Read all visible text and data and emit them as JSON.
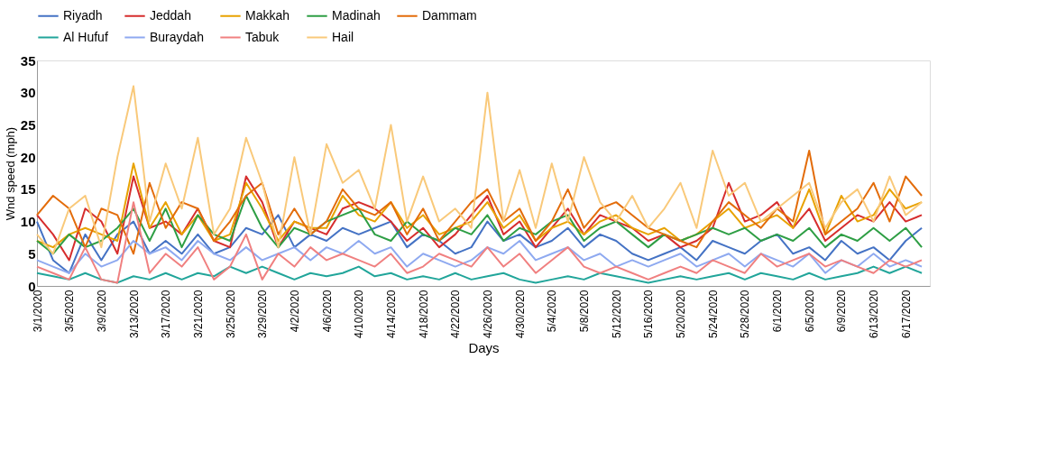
{
  "chart_data": {
    "type": "line",
    "xlabel": "Days",
    "ylabel": "Wnd speed (mph)",
    "ylim": [
      0,
      35
    ],
    "yticks": [
      0,
      5,
      10,
      15,
      20,
      25,
      30,
      35
    ],
    "xlim": [
      "2020-03-01",
      "2020-06-20"
    ],
    "xticks": [
      {
        "value": "2020-03-01",
        "label": "3/1/2020"
      },
      {
        "value": "2020-03-05",
        "label": "3/5/2020"
      },
      {
        "value": "2020-03-09",
        "label": "3/9/2020"
      },
      {
        "value": "2020-03-13",
        "label": "3/13/2020"
      },
      {
        "value": "2020-03-17",
        "label": "3/17/2020"
      },
      {
        "value": "2020-03-21",
        "label": "3/21/2020"
      },
      {
        "value": "2020-03-25",
        "label": "3/25/2020"
      },
      {
        "value": "2020-03-29",
        "label": "3/29/2020"
      },
      {
        "value": "2020-04-02",
        "label": "4/2/2020"
      },
      {
        "value": "2020-04-06",
        "label": "4/6/2020"
      },
      {
        "value": "2020-04-10",
        "label": "4/10/2020"
      },
      {
        "value": "2020-04-14",
        "label": "4/14/2020"
      },
      {
        "value": "2020-04-18",
        "label": "4/18/2020"
      },
      {
        "value": "2020-04-22",
        "label": "4/22/2020"
      },
      {
        "value": "2020-04-26",
        "label": "4/26/2020"
      },
      {
        "value": "2020-04-30",
        "label": "4/30/2020"
      },
      {
        "value": "2020-05-04",
        "label": "5/4/2020"
      },
      {
        "value": "2020-05-08",
        "label": "5/8/2020"
      },
      {
        "value": "2020-05-12",
        "label": "5/12/2020"
      },
      {
        "value": "2020-05-16",
        "label": "5/16/2020"
      },
      {
        "value": "2020-05-20",
        "label": "5/20/2020"
      },
      {
        "value": "2020-05-24",
        "label": "5/24/2020"
      },
      {
        "value": "2020-05-28",
        "label": "5/28/2020"
      },
      {
        "value": "2020-06-01",
        "label": "6/1/2020"
      },
      {
        "value": "2020-06-05",
        "label": "6/5/2020"
      },
      {
        "value": "2020-06-09",
        "label": "6/9/2020"
      },
      {
        "value": "2020-06-13",
        "label": "6/13/2020"
      },
      {
        "value": "2020-06-17",
        "label": "6/17/2020"
      }
    ],
    "x": [
      "2020-03-01",
      "2020-03-03",
      "2020-03-05",
      "2020-03-07",
      "2020-03-09",
      "2020-03-11",
      "2020-03-13",
      "2020-03-15",
      "2020-03-17",
      "2020-03-19",
      "2020-03-21",
      "2020-03-23",
      "2020-03-25",
      "2020-03-27",
      "2020-03-29",
      "2020-03-31",
      "2020-04-02",
      "2020-04-04",
      "2020-04-06",
      "2020-04-08",
      "2020-04-10",
      "2020-04-12",
      "2020-04-14",
      "2020-04-16",
      "2020-04-18",
      "2020-04-20",
      "2020-04-22",
      "2020-04-24",
      "2020-04-26",
      "2020-04-28",
      "2020-04-30",
      "2020-05-02",
      "2020-05-04",
      "2020-05-06",
      "2020-05-08",
      "2020-05-10",
      "2020-05-12",
      "2020-05-14",
      "2020-05-16",
      "2020-05-18",
      "2020-05-20",
      "2020-05-22",
      "2020-05-24",
      "2020-05-26",
      "2020-05-28",
      "2020-05-30",
      "2020-06-01",
      "2020-06-03",
      "2020-06-05",
      "2020-06-07",
      "2020-06-09",
      "2020-06-11",
      "2020-06-13",
      "2020-06-15",
      "2020-06-17",
      "2020-06-19"
    ],
    "grid": false,
    "legend": "top",
    "marker": "none",
    "line_style": "solid",
    "series": [
      {
        "name": "Riyadh",
        "color": "#4472c4",
        "values": [
          10,
          4,
          2,
          8,
          4,
          8,
          10,
          5,
          7,
          5,
          8,
          5,
          6,
          9,
          8,
          11,
          6,
          8,
          7,
          9,
          8,
          9,
          10,
          6,
          8,
          7,
          5,
          6,
          10,
          7,
          8,
          6,
          7,
          9,
          6,
          8,
          7,
          5,
          4,
          5,
          6,
          4,
          7,
          6,
          5,
          7,
          8,
          5,
          6,
          4,
          7,
          5,
          6,
          4,
          7,
          9
        ]
      },
      {
        "name": "Jeddah",
        "color": "#d62d2d",
        "values": [
          11,
          8,
          4,
          12,
          10,
          5,
          17,
          9,
          10,
          8,
          12,
          7,
          6,
          17,
          13,
          6,
          10,
          9,
          8,
          12,
          13,
          12,
          10,
          7,
          9,
          6,
          8,
          11,
          14,
          8,
          10,
          6,
          9,
          12,
          8,
          11,
          10,
          9,
          7,
          8,
          6,
          7,
          9,
          16,
          10,
          11,
          13,
          9,
          12,
          7,
          9,
          11,
          10,
          13,
          10,
          11
        ]
      },
      {
        "name": "Makkah",
        "color": "#e8a200",
        "values": [
          7,
          6,
          8,
          9,
          8,
          7,
          19,
          9,
          13,
          8,
          11,
          7,
          8,
          16,
          12,
          7,
          10,
          9,
          9,
          14,
          11,
          10,
          13,
          9,
          11,
          8,
          9,
          10,
          13,
          9,
          11,
          7,
          9,
          10,
          8,
          10,
          11,
          9,
          8,
          9,
          7,
          8,
          10,
          12,
          9,
          10,
          11,
          9,
          15,
          8,
          14,
          10,
          11,
          15,
          12,
          13
        ]
      },
      {
        "name": "Madinah",
        "color": "#2e9e44",
        "values": [
          7,
          5,
          8,
          6,
          7,
          9,
          12,
          7,
          12,
          6,
          11,
          8,
          7,
          14,
          9,
          6,
          9,
          8,
          10,
          11,
          12,
          8,
          7,
          10,
          8,
          7,
          9,
          8,
          11,
          7,
          9,
          8,
          10,
          11,
          7,
          9,
          10,
          8,
          6,
          8,
          7,
          8,
          9,
          8,
          9,
          7,
          8,
          7,
          9,
          6,
          8,
          7,
          9,
          7,
          9,
          6
        ]
      },
      {
        "name": "Dammam",
        "color": "#e36c0a",
        "values": [
          11,
          14,
          12,
          6,
          12,
          11,
          5,
          16,
          9,
          13,
          12,
          7,
          10,
          14,
          16,
          8,
          12,
          8,
          10,
          15,
          12,
          11,
          13,
          8,
          12,
          7,
          10,
          13,
          15,
          10,
          12,
          7,
          10,
          15,
          9,
          12,
          13,
          11,
          9,
          8,
          7,
          6,
          10,
          13,
          11,
          9,
          12,
          10,
          21,
          8,
          10,
          12,
          16,
          10,
          17,
          14
        ]
      },
      {
        "name": "Al Hufuf",
        "color": "#21a59a",
        "values": [
          2,
          1.5,
          1,
          2,
          1,
          0.5,
          1.5,
          1,
          2,
          1,
          2,
          1.5,
          3,
          2,
          3,
          2,
          1,
          2,
          1.5,
          2,
          3,
          1.5,
          2,
          1,
          1.5,
          1,
          2,
          1,
          1.5,
          2,
          1,
          0.5,
          1,
          1.5,
          1,
          2,
          1.5,
          1,
          0.5,
          1,
          1.5,
          1,
          1.5,
          2,
          1,
          2,
          1.5,
          1,
          2,
          1,
          1.5,
          2,
          3,
          2,
          3,
          2
        ]
      },
      {
        "name": "Buraydah",
        "color": "#8ea9f0",
        "values": [
          4,
          3,
          2,
          5,
          3,
          4,
          7,
          5,
          6,
          4,
          7,
          5,
          4,
          6,
          4,
          5,
          6,
          4,
          6,
          5,
          7,
          5,
          6,
          3,
          5,
          4,
          3,
          4,
          6,
          5,
          7,
          4,
          5,
          6,
          4,
          5,
          3,
          4,
          3,
          4,
          5,
          3,
          4,
          5,
          3,
          5,
          4,
          3,
          5,
          2,
          4,
          3,
          5,
          3,
          4,
          3
        ]
      },
      {
        "name": "Tabuk",
        "color": "#f08080",
        "values": [
          3,
          2,
          1,
          6,
          1,
          0.5,
          13,
          2,
          5,
          3,
          6,
          1,
          3,
          8,
          1,
          5,
          3,
          6,
          4,
          5,
          4,
          3,
          5,
          2,
          3,
          5,
          4,
          3,
          6,
          3,
          5,
          2,
          4,
          6,
          3,
          2,
          3,
          2,
          1,
          2,
          3,
          2,
          4,
          3,
          2,
          5,
          3,
          4,
          5,
          3,
          4,
          3,
          2,
          4,
          3,
          4
        ]
      },
      {
        "name": "Hail",
        "color": "#f9c97a",
        "values": [
          8,
          5,
          12,
          14,
          6,
          20,
          31,
          10,
          19,
          12,
          23,
          8,
          12,
          23,
          16,
          6,
          20,
          8,
          22,
          16,
          18,
          12,
          25,
          10,
          17,
          10,
          12,
          9,
          30,
          10,
          18,
          9,
          19,
          10,
          20,
          13,
          10,
          14,
          9,
          12,
          16,
          9,
          21,
          14,
          16,
          10,
          12,
          14,
          16,
          9,
          13,
          15,
          10,
          17,
          11,
          13
        ]
      }
    ]
  }
}
